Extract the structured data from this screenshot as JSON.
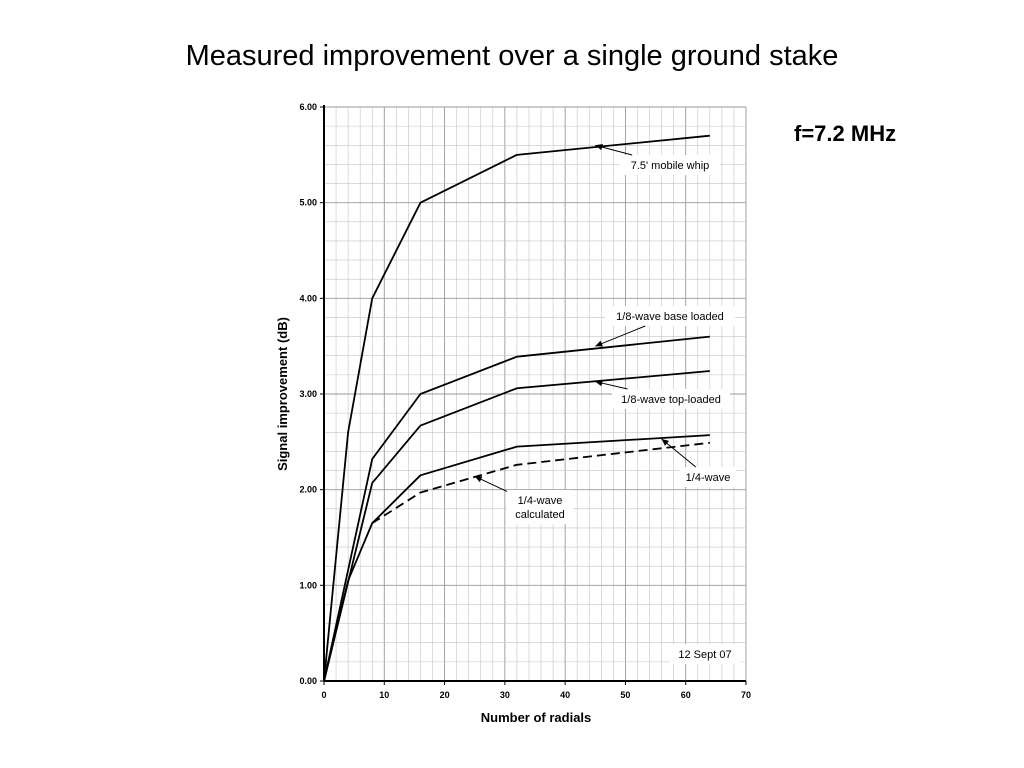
{
  "slide": {
    "title": "Measured improvement over a single ground stake",
    "frequency_label": "f=7.2 MHz"
  },
  "chart_data": {
    "type": "line",
    "title": "",
    "xlabel": "Number of radials",
    "ylabel": "Signal improvement (dB)",
    "xlim": [
      0,
      70
    ],
    "ylim": [
      0,
      6
    ],
    "x_ticks": [
      0,
      10,
      20,
      30,
      40,
      50,
      60,
      70
    ],
    "y_ticks": [
      0,
      1,
      2,
      3,
      4,
      5,
      6
    ],
    "y_tick_labels": [
      "0.00",
      "1.00",
      "2.00",
      "3.00",
      "4.00",
      "5.00",
      "6.00"
    ],
    "grid": true,
    "date_note": "12 Sept 07",
    "series": [
      {
        "name": "7.5' mobile whip",
        "style": "solid",
        "x": [
          0,
          4,
          8,
          16,
          32,
          64
        ],
        "y": [
          0,
          2.6,
          4.0,
          5.0,
          5.5,
          5.7
        ]
      },
      {
        "name": "1/8-wave base loaded",
        "style": "solid",
        "x": [
          0,
          8,
          16,
          32,
          64
        ],
        "y": [
          0,
          2.32,
          3.0,
          3.39,
          3.6
        ]
      },
      {
        "name": "1/8-wave top-loaded",
        "style": "solid",
        "x": [
          0,
          8,
          16,
          32,
          64
        ],
        "y": [
          0,
          2.07,
          2.67,
          3.06,
          3.24
        ]
      },
      {
        "name": "1/4-wave",
        "style": "solid",
        "x": [
          0,
          4,
          8,
          16,
          32,
          64
        ],
        "y": [
          0,
          1.05,
          1.65,
          2.15,
          2.45,
          2.57
        ]
      },
      {
        "name": "1/4-wave calculated",
        "style": "dashed",
        "x": [
          8,
          16,
          32,
          64
        ],
        "y": [
          1.65,
          1.97,
          2.26,
          2.49
        ]
      }
    ],
    "annotations": [
      {
        "lines": [
          "7.5' mobile whip"
        ],
        "series": 0,
        "target": [
          45,
          5.6
        ]
      },
      {
        "lines": [
          "1/8-wave base loaded"
        ],
        "series": 1,
        "target": [
          45,
          3.5
        ]
      },
      {
        "lines": [
          "1/8-wave top-loaded"
        ],
        "series": 2,
        "target": [
          45,
          3.13
        ]
      },
      {
        "lines": [
          "1/4-wave"
        ],
        "series": 3,
        "target": [
          56,
          2.53
        ]
      },
      {
        "lines": [
          "1/4-wave",
          "calculated"
        ],
        "series": 4,
        "target": [
          25,
          2.14
        ]
      }
    ]
  }
}
